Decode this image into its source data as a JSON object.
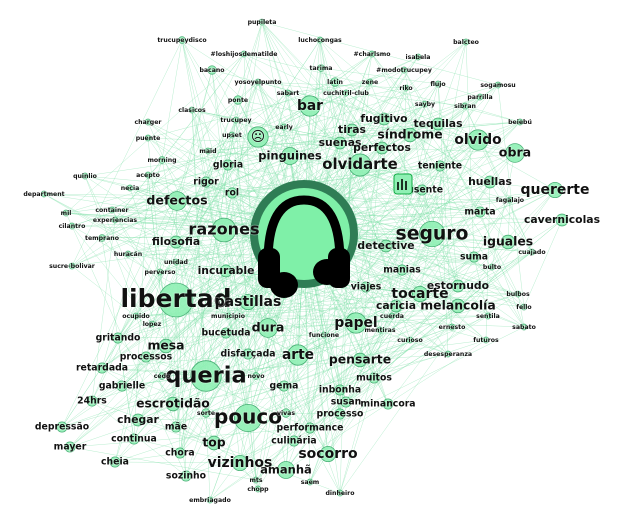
{
  "graph": {
    "nodes": [
      {
        "label": "pupileta",
        "w": 3
      },
      {
        "label": "trucupeydisco",
        "w": 4
      },
      {
        "label": "luchocongas",
        "w": 3
      },
      {
        "label": "#loshijosdematilde",
        "w": 3
      },
      {
        "label": "#charlsmo",
        "w": 3
      },
      {
        "label": "isabela",
        "w": 3
      },
      {
        "label": "balcteo",
        "w": 3
      },
      {
        "label": "bacano",
        "w": 5
      },
      {
        "label": "tarima",
        "w": 4
      },
      {
        "label": "#modotrucupey",
        "w": 3
      },
      {
        "label": "latin",
        "w": 5
      },
      {
        "label": "zene",
        "w": 3
      },
      {
        "label": "yosoyelpunto",
        "w": 3
      },
      {
        "label": "cuchitril-club",
        "w": 3
      },
      {
        "label": "sabart",
        "w": 3
      },
      {
        "label": "ponte",
        "w": 5
      },
      {
        "label": "sogamosu",
        "w": 3
      },
      {
        "label": "flujo",
        "w": 3
      },
      {
        "label": "riko",
        "w": 3
      },
      {
        "label": "parrilla",
        "w": 3
      },
      {
        "label": "sayby",
        "w": 3
      },
      {
        "label": "sibran",
        "w": 3
      },
      {
        "label": "bar",
        "w": 12
      },
      {
        "label": "clasicos",
        "w": 3
      },
      {
        "label": "trucupey",
        "w": 3
      },
      {
        "label": "fugitivo",
        "w": 7
      },
      {
        "label": "tequilas",
        "w": 7
      },
      {
        "label": "charger",
        "w": 3
      },
      {
        "label": "upset",
        "w": 3
      },
      {
        "label": "early",
        "w": 3
      },
      {
        "label": "tiras",
        "w": 7
      },
      {
        "label": "síndrome",
        "w": 8
      },
      {
        "label": "beiebú",
        "w": 3
      },
      {
        "label": "☹",
        "w": 12
      },
      {
        "label": "suenas",
        "w": 7
      },
      {
        "label": "olvido",
        "w": 12
      },
      {
        "label": "puente",
        "w": 3
      },
      {
        "label": "maid",
        "w": 3
      },
      {
        "label": "perfectos",
        "w": 7
      },
      {
        "label": "obra",
        "w": 11
      },
      {
        "label": "morning",
        "w": 4
      },
      {
        "label": "pinguines",
        "w": 10
      },
      {
        "label": "olvidarte",
        "w": 13
      },
      {
        "label": "gloria",
        "w": 6
      },
      {
        "label": "teniente",
        "w": 6
      },
      {
        "label": "quinlio",
        "w": 3
      },
      {
        "label": "acepto",
        "w": 3
      },
      {
        "label": "necia",
        "w": 3
      },
      {
        "label": "rigor",
        "w": 6
      },
      {
        "label": "huellas",
        "w": 7
      },
      {
        "label": "quererte",
        "w": 9
      },
      {
        "label": "ausente",
        "w": 6
      },
      {
        "label": "department",
        "w": 3
      },
      {
        "label": "rol",
        "w": 6
      },
      {
        "label": "defectos",
        "w": 11
      },
      {
        "label": "fagalajo",
        "w": 3
      },
      {
        "label": "container",
        "w": 3
      },
      {
        "label": "mil",
        "w": 3
      },
      {
        "label": "experiencias",
        "w": 3
      },
      {
        "label": "marta",
        "w": 6
      },
      {
        "label": "cavernicolas",
        "w": 7
      },
      {
        "label": "cilantro",
        "w": 3
      },
      {
        "label": "razones",
        "w": 14
      },
      {
        "label": "seguro",
        "w": 15
      },
      {
        "label": "temprano",
        "w": 4
      },
      {
        "label": "iguales",
        "w": 8
      },
      {
        "label": "filosofia",
        "w": 7
      },
      {
        "label": "detective",
        "w": 7
      },
      {
        "label": "huracán",
        "w": 3
      },
      {
        "label": "suma",
        "w": 6
      },
      {
        "label": "cuajado",
        "w": 3
      },
      {
        "label": "sucre-bolivar",
        "w": 3
      },
      {
        "label": "unidad",
        "w": 3
      },
      {
        "label": "bulto",
        "w": 3
      },
      {
        "label": "incurable",
        "w": 7
      },
      {
        "label": "manias",
        "w": 6
      },
      {
        "label": "perverso",
        "w": 3
      },
      {
        "label": "viajes",
        "w": 6
      },
      {
        "label": "estornudo",
        "w": 7
      },
      {
        "label": "tocarte",
        "w": 9
      },
      {
        "label": "bulbos",
        "w": 3
      },
      {
        "label": "libertad",
        "w": 20
      },
      {
        "label": "pastillas",
        "w": 9
      },
      {
        "label": "caricia",
        "w": 7
      },
      {
        "label": "melancolía",
        "w": 8
      },
      {
        "label": "fello",
        "w": 3
      },
      {
        "label": "ocupido",
        "w": 3
      },
      {
        "label": "municipio",
        "w": 3
      },
      {
        "label": "cuerda",
        "w": 3
      },
      {
        "label": "sentila",
        "w": 3
      },
      {
        "label": "lopez",
        "w": 3
      },
      {
        "label": "papel",
        "w": 12
      },
      {
        "label": "ernesto",
        "w": 3
      },
      {
        "label": "sabato",
        "w": 3
      },
      {
        "label": "dura",
        "w": 11
      },
      {
        "label": "bucetuda",
        "w": 6
      },
      {
        "label": "funcione",
        "w": 3
      },
      {
        "label": "mentiras",
        "w": 3
      },
      {
        "label": "curioso",
        "w": 3
      },
      {
        "label": "futuros",
        "w": 3
      },
      {
        "label": "gritando",
        "w": 6
      },
      {
        "label": "mesa",
        "w": 8
      },
      {
        "label": "desesperanza",
        "w": 3
      },
      {
        "label": "processos",
        "w": 6
      },
      {
        "label": "disfarçada",
        "w": 6
      },
      {
        "label": "arte",
        "w": 12
      },
      {
        "label": "pensarte",
        "w": 8
      },
      {
        "label": "retardada",
        "w": 6
      },
      {
        "label": "queria",
        "w": 18
      },
      {
        "label": "cedo",
        "w": 4
      },
      {
        "label": "novo",
        "w": 4
      },
      {
        "label": "muitos",
        "w": 6
      },
      {
        "label": "gabrielle",
        "w": 6
      },
      {
        "label": "gema",
        "w": 6
      },
      {
        "label": "inbonha",
        "w": 6
      },
      {
        "label": "24hrs",
        "w": 6
      },
      {
        "label": "escrotidão",
        "w": 8
      },
      {
        "label": "susan",
        "w": 6
      },
      {
        "label": "minancora",
        "w": 6
      },
      {
        "label": "chegar",
        "w": 7
      },
      {
        "label": "sorte",
        "w": 5
      },
      {
        "label": "pouco",
        "w": 16
      },
      {
        "label": "vivas",
        "w": 5
      },
      {
        "label": "processo",
        "w": 6
      },
      {
        "label": "depressão",
        "w": 6
      },
      {
        "label": "mãe",
        "w": 6
      },
      {
        "label": "performance",
        "w": 6
      },
      {
        "label": "continua",
        "w": 6
      },
      {
        "label": "top",
        "w": 8
      },
      {
        "label": "culinária",
        "w": 6
      },
      {
        "label": "mayer",
        "w": 6
      },
      {
        "label": "chora",
        "w": 6
      },
      {
        "label": "socorro",
        "w": 9
      },
      {
        "label": "cheia",
        "w": 6
      },
      {
        "label": "vizinhos",
        "w": 9
      },
      {
        "label": "amanhã",
        "w": 10
      },
      {
        "label": "sozinho",
        "w": 6
      },
      {
        "label": "mts",
        "w": 3
      },
      {
        "label": "saem",
        "w": 3
      },
      {
        "label": "chopp",
        "w": 3
      },
      {
        "label": "dinheiro",
        "w": 3
      },
      {
        "label": "embriagado",
        "w": 3
      }
    ]
  },
  "colors": {
    "background": "#ffffff",
    "node_fill": "#8ff0b4",
    "node_stroke": "#3aa86a",
    "edge": "#7fe0a8",
    "hub_ring": "#2f7d55",
    "hub_disc": "#7ff0a8",
    "label": "#111111"
  },
  "icons": [
    "headphones-icon",
    "sad-face-icon",
    "hand-sign-icon"
  ]
}
